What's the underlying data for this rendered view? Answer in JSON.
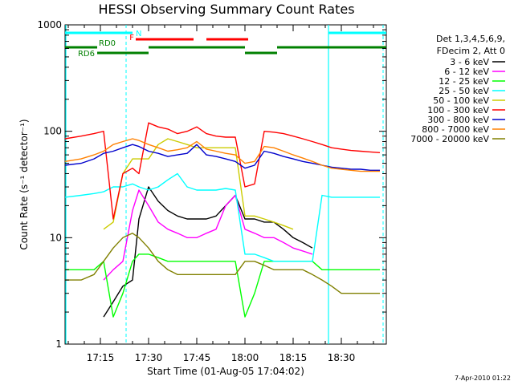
{
  "chart_data": {
    "type": "line",
    "title": "HESSI Observing Summary Count Rates",
    "xlabel": "Start Time (01-Aug-05 17:04:02)",
    "ylabel": "Count Rate (s⁻¹ detector⁻¹)",
    "y_scale": "log",
    "xlim": [
      "17:04",
      "18:44"
    ],
    "ylim": [
      1,
      1000
    ],
    "x_ticks": [
      "17:15",
      "17:30",
      "17:45",
      "18:00",
      "18:15",
      "18:30"
    ],
    "y_ticks": [
      "1",
      "10",
      "100",
      "1000"
    ],
    "grid": false,
    "legend_position": "right",
    "legend_header": [
      "Det 1,3,4,5,6,9,",
      "FDecim 2, Att 0"
    ],
    "footer": "7-Apr-2010 01:22",
    "flags": [
      {
        "name": "N",
        "color": "#00ffff",
        "segments": [
          [
            "17:04",
            "17:25"
          ],
          [
            "18:26",
            "18:44"
          ]
        ]
      },
      {
        "name": "F",
        "color": "#ff0000",
        "segments": [
          [
            "17:26",
            "17:44"
          ],
          [
            "17:48",
            "18:01"
          ]
        ]
      },
      {
        "name": "RD0",
        "color": "#008000",
        "segments": [
          [
            "17:04",
            "17:14"
          ],
          [
            "17:30",
            "18:00"
          ],
          [
            "18:10",
            "18:44"
          ]
        ]
      },
      {
        "name": "RD6",
        "color": "#008000",
        "segments": [
          [
            "17:14",
            "17:30"
          ],
          [
            "18:00",
            "18:10"
          ]
        ]
      }
    ],
    "vlines": [
      "17:23",
      "18:26",
      "18:43"
    ],
    "x": [
      "17:04",
      "17:09",
      "17:13",
      "17:16",
      "17:19",
      "17:22",
      "17:25",
      "17:27",
      "17:30",
      "17:33",
      "17:36",
      "17:39",
      "17:42",
      "17:45",
      "17:48",
      "17:51",
      "17:54",
      "17:57",
      "18:00",
      "18:03",
      "18:06",
      "18:09",
      "18:12",
      "18:15",
      "18:18",
      "18:21",
      "18:24",
      "18:27",
      "18:30",
      "18:33",
      "18:36",
      "18:39",
      "18:42"
    ],
    "series": [
      {
        "name": "3 - 6 keV",
        "color": "#000000",
        "values": [
          null,
          null,
          null,
          1.8,
          2.5,
          3.5,
          4,
          15,
          30,
          22,
          18,
          16,
          15,
          15,
          15,
          16,
          20,
          25,
          15,
          15,
          14,
          14,
          12,
          10,
          9,
          8,
          null,
          null,
          null,
          null,
          null,
          null,
          null
        ]
      },
      {
        "name": "6 - 12 keV",
        "color": "#ff00ff",
        "values": [
          null,
          null,
          null,
          4,
          5,
          6,
          18,
          28,
          20,
          14,
          12,
          11,
          10,
          10,
          11,
          12,
          20,
          25,
          12,
          11,
          10,
          10,
          9,
          8,
          7.5,
          7,
          null,
          null,
          null,
          null,
          null,
          null,
          null
        ]
      },
      {
        "name": "12 - 25 keV",
        "color": "#00ff00",
        "values": [
          5,
          5,
          5,
          6,
          1.8,
          3,
          6,
          7,
          7,
          6.5,
          6,
          6,
          6,
          6,
          6,
          6,
          6,
          6,
          1.8,
          3,
          6,
          6,
          6,
          6,
          6,
          6,
          5,
          5,
          5,
          5,
          5,
          5,
          5
        ]
      },
      {
        "name": "25 - 50 keV",
        "color": "#00ffff",
        "values": [
          24,
          25,
          26,
          27,
          30,
          30,
          32,
          30,
          28,
          30,
          35,
          40,
          30,
          28,
          28,
          28,
          29,
          28,
          7,
          7,
          6.5,
          6,
          6,
          6,
          6,
          6,
          25,
          24,
          24,
          24,
          24,
          24,
          24
        ]
      },
      {
        "name": "50 - 100 keV",
        "color": "#cccc00",
        "values": [
          null,
          null,
          null,
          12,
          14,
          40,
          55,
          55,
          55,
          75,
          85,
          80,
          75,
          70,
          70,
          70,
          70,
          70,
          16,
          16,
          15,
          14,
          13,
          12,
          null,
          null,
          null,
          null,
          null,
          null,
          null,
          null,
          null
        ]
      },
      {
        "name": "100 - 300 keV",
        "color": "#ff0000",
        "values": [
          85,
          90,
          95,
          100,
          15,
          40,
          45,
          40,
          120,
          110,
          105,
          95,
          100,
          110,
          95,
          90,
          88,
          88,
          30,
          32,
          100,
          98,
          95,
          90,
          85,
          80,
          75,
          70,
          68,
          66,
          65,
          64,
          63
        ]
      },
      {
        "name": "300 - 800 keV",
        "color": "#0000cc",
        "values": [
          48,
          50,
          55,
          62,
          65,
          70,
          75,
          72,
          65,
          62,
          58,
          60,
          62,
          75,
          60,
          58,
          55,
          52,
          45,
          48,
          65,
          62,
          58,
          55,
          52,
          50,
          48,
          46,
          45,
          44,
          44,
          43,
          43
        ]
      },
      {
        "name": "800 - 7000 keV",
        "color": "#ff8000",
        "values": [
          52,
          55,
          60,
          65,
          75,
          80,
          85,
          82,
          75,
          70,
          65,
          67,
          70,
          80,
          68,
          65,
          62,
          60,
          50,
          52,
          72,
          70,
          65,
          60,
          56,
          52,
          48,
          45,
          44,
          43,
          42,
          42,
          42
        ]
      },
      {
        "name": "7000 - 20000 keV",
        "color": "#808000",
        "values": [
          4,
          4,
          4.5,
          6,
          8,
          10,
          11,
          10,
          8,
          6,
          5,
          4.5,
          4.5,
          4.5,
          4.5,
          4.5,
          4.5,
          4.5,
          6,
          6,
          5.5,
          5,
          5,
          5,
          5,
          4.5,
          4,
          3.5,
          3,
          3,
          3,
          3,
          3
        ]
      }
    ]
  }
}
